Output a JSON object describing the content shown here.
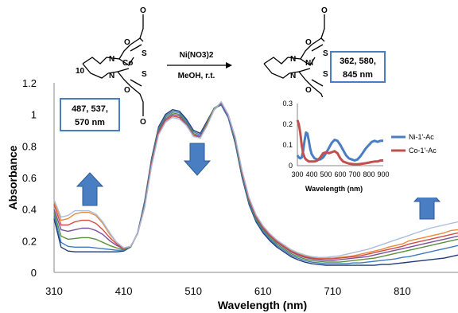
{
  "chart_data": [
    {
      "type": "line",
      "xlabel": "Wavelength (nm)",
      "ylabel": "Absorbance",
      "xlim": [
        310,
        890
      ],
      "ylim": [
        0,
        1.2
      ],
      "x_ticks": [
        "310",
        "410",
        "510",
        "610",
        "710",
        "810"
      ],
      "y_ticks": [
        "0",
        "0.2",
        "0.4",
        "0.6",
        "0.8",
        "1",
        "1.2"
      ],
      "grid": false,
      "colors": [
        "#1f3b73",
        "#3d7abf",
        "#5a8f3c",
        "#7b4f9e",
        "#e98a3a",
        "#d24a45",
        "#a9bde0"
      ],
      "x": [
        310,
        320,
        330,
        340,
        350,
        360,
        370,
        380,
        390,
        400,
        410,
        420,
        430,
        440,
        450,
        460,
        470,
        480,
        490,
        500,
        510,
        520,
        530,
        540,
        550,
        560,
        570,
        580,
        590,
        600,
        610,
        620,
        630,
        640,
        650,
        660,
        670,
        680,
        690,
        700,
        710,
        720,
        730,
        740,
        750,
        760,
        770,
        780,
        790,
        800,
        810,
        820,
        830,
        840,
        850,
        860,
        870,
        880,
        890
      ],
      "series": [
        {
          "values": [
            0.34,
            0.16,
            0.135,
            0.13,
            0.13,
            0.13,
            0.13,
            0.13,
            0.13,
            0.13,
            0.135,
            0.16,
            0.25,
            0.45,
            0.72,
            0.92,
            1.0,
            1.03,
            1.02,
            0.97,
            0.9,
            0.88,
            0.96,
            1.04,
            1.06,
            0.98,
            0.82,
            0.6,
            0.43,
            0.32,
            0.25,
            0.2,
            0.16,
            0.13,
            0.1,
            0.08,
            0.065,
            0.055,
            0.05,
            0.045,
            0.045,
            0.045,
            0.045,
            0.045,
            0.045,
            0.045,
            0.045,
            0.05,
            0.05,
            0.055,
            0.06,
            0.065,
            0.07,
            0.075,
            0.08,
            0.085,
            0.09,
            0.1,
            0.11
          ]
        },
        {
          "values": [
            0.36,
            0.19,
            0.165,
            0.16,
            0.16,
            0.16,
            0.155,
            0.15,
            0.145,
            0.14,
            0.14,
            0.16,
            0.25,
            0.44,
            0.71,
            0.91,
            0.99,
            1.02,
            1.01,
            0.96,
            0.89,
            0.87,
            0.95,
            1.04,
            1.06,
            0.98,
            0.83,
            0.61,
            0.44,
            0.33,
            0.26,
            0.21,
            0.17,
            0.14,
            0.11,
            0.09,
            0.075,
            0.065,
            0.06,
            0.055,
            0.055,
            0.055,
            0.055,
            0.06,
            0.06,
            0.065,
            0.07,
            0.075,
            0.08,
            0.085,
            0.095,
            0.1,
            0.11,
            0.12,
            0.13,
            0.14,
            0.15,
            0.16,
            0.17
          ]
        },
        {
          "values": [
            0.38,
            0.23,
            0.21,
            0.215,
            0.22,
            0.22,
            0.21,
            0.19,
            0.17,
            0.155,
            0.145,
            0.16,
            0.245,
            0.43,
            0.7,
            0.9,
            0.98,
            1.01,
            1.0,
            0.95,
            0.88,
            0.86,
            0.95,
            1.04,
            1.07,
            0.99,
            0.84,
            0.62,
            0.45,
            0.34,
            0.27,
            0.22,
            0.18,
            0.15,
            0.12,
            0.1,
            0.085,
            0.075,
            0.07,
            0.065,
            0.065,
            0.065,
            0.07,
            0.075,
            0.08,
            0.085,
            0.09,
            0.1,
            0.11,
            0.12,
            0.13,
            0.14,
            0.15,
            0.16,
            0.17,
            0.18,
            0.19,
            0.2,
            0.21
          ]
        },
        {
          "values": [
            0.4,
            0.27,
            0.26,
            0.27,
            0.28,
            0.28,
            0.265,
            0.24,
            0.2,
            0.17,
            0.15,
            0.165,
            0.245,
            0.42,
            0.69,
            0.89,
            0.97,
            1.0,
            0.99,
            0.94,
            0.87,
            0.86,
            0.94,
            1.03,
            1.07,
            0.99,
            0.85,
            0.63,
            0.46,
            0.35,
            0.28,
            0.23,
            0.19,
            0.16,
            0.13,
            0.11,
            0.095,
            0.085,
            0.08,
            0.075,
            0.075,
            0.08,
            0.085,
            0.09,
            0.095,
            0.1,
            0.11,
            0.12,
            0.13,
            0.14,
            0.15,
            0.16,
            0.17,
            0.18,
            0.19,
            0.2,
            0.21,
            0.22,
            0.23
          ]
        },
        {
          "values": [
            0.45,
            0.33,
            0.34,
            0.37,
            0.38,
            0.38,
            0.36,
            0.31,
            0.24,
            0.19,
            0.155,
            0.165,
            0.245,
            0.41,
            0.68,
            0.88,
            0.96,
            0.99,
            0.98,
            0.93,
            0.87,
            0.85,
            0.94,
            1.03,
            1.08,
            1.0,
            0.86,
            0.64,
            0.47,
            0.36,
            0.29,
            0.24,
            0.2,
            0.17,
            0.14,
            0.12,
            0.105,
            0.095,
            0.09,
            0.09,
            0.09,
            0.095,
            0.1,
            0.105,
            0.115,
            0.125,
            0.135,
            0.145,
            0.16,
            0.17,
            0.18,
            0.2,
            0.21,
            0.22,
            0.23,
            0.24,
            0.25,
            0.265,
            0.27
          ]
        },
        {
          "values": [
            0.43,
            0.3,
            0.3,
            0.32,
            0.33,
            0.33,
            0.31,
            0.27,
            0.22,
            0.18,
            0.15,
            0.165,
            0.245,
            0.415,
            0.68,
            0.88,
            0.96,
            0.99,
            0.98,
            0.93,
            0.87,
            0.85,
            0.94,
            1.03,
            1.075,
            1.0,
            0.855,
            0.635,
            0.465,
            0.355,
            0.285,
            0.235,
            0.195,
            0.165,
            0.135,
            0.115,
            0.1,
            0.09,
            0.085,
            0.085,
            0.085,
            0.09,
            0.095,
            0.1,
            0.105,
            0.115,
            0.125,
            0.135,
            0.145,
            0.155,
            0.165,
            0.18,
            0.19,
            0.2,
            0.21,
            0.22,
            0.23,
            0.24,
            0.25
          ]
        },
        {
          "values": [
            0.46,
            0.35,
            0.36,
            0.39,
            0.39,
            0.39,
            0.37,
            0.32,
            0.25,
            0.19,
            0.155,
            0.165,
            0.245,
            0.41,
            0.67,
            0.87,
            0.95,
            0.98,
            0.97,
            0.93,
            0.86,
            0.85,
            0.93,
            1.03,
            1.08,
            1.0,
            0.86,
            0.645,
            0.475,
            0.365,
            0.295,
            0.245,
            0.205,
            0.175,
            0.145,
            0.125,
            0.11,
            0.1,
            0.095,
            0.095,
            0.1,
            0.105,
            0.115,
            0.125,
            0.135,
            0.145,
            0.16,
            0.175,
            0.19,
            0.205,
            0.22,
            0.235,
            0.25,
            0.265,
            0.28,
            0.29,
            0.3,
            0.31,
            0.32
          ]
        }
      ]
    },
    {
      "type": "line",
      "xlabel": "Wavelength (nm)",
      "xlim": [
        300,
        900
      ],
      "ylim": [
        0,
        0.3
      ],
      "x_ticks": [
        "300",
        "400",
        "500",
        "600",
        "700",
        "800",
        "900"
      ],
      "y_ticks": [
        "0",
        "0.1",
        "0.2",
        "0.3"
      ],
      "legend_position": "right",
      "x": [
        300,
        310,
        320,
        330,
        340,
        350,
        360,
        370,
        380,
        390,
        400,
        420,
        440,
        460,
        480,
        500,
        520,
        540,
        560,
        580,
        600,
        620,
        640,
        660,
        680,
        700,
        720,
        740,
        760,
        780,
        800,
        820,
        840,
        860,
        880,
        900
      ],
      "series": [
        {
          "name": "Ni-1'-Ac",
          "color": "#4a7ec3",
          "values": [
            0.05,
            0.04,
            0.035,
            0.04,
            0.07,
            0.12,
            0.16,
            0.155,
            0.12,
            0.08,
            0.055,
            0.035,
            0.03,
            0.03,
            0.04,
            0.06,
            0.085,
            0.11,
            0.125,
            0.12,
            0.1,
            0.075,
            0.05,
            0.035,
            0.03,
            0.025,
            0.03,
            0.045,
            0.065,
            0.085,
            0.1,
            0.115,
            0.12,
            0.115,
            0.12,
            0.12
          ]
        },
        {
          "name": "Co-1'-Ac",
          "color": "#c0504d",
          "values": [
            0.22,
            0.2,
            0.16,
            0.1,
            0.06,
            0.04,
            0.03,
            0.025,
            0.02,
            0.02,
            0.02,
            0.02,
            0.025,
            0.04,
            0.06,
            0.065,
            0.06,
            0.065,
            0.07,
            0.06,
            0.035,
            0.02,
            0.015,
            0.01,
            0.008,
            0.007,
            0.007,
            0.008,
            0.01,
            0.012,
            0.015,
            0.018,
            0.02,
            0.02,
            0.025,
            0.025
          ]
        }
      ]
    }
  ],
  "annotations": {
    "box_left": [
      "487, 537,",
      "570 nm"
    ],
    "box_right": [
      "362, 580,",
      "845 nm"
    ],
    "compound_number": "10",
    "reagent": "Ni(NO3)2",
    "conditions": "MeOH, r.t.",
    "arrow_color": "#4a7ec3",
    "atoms": {
      "N": "N",
      "S": "S",
      "O": "O",
      "Co": "Co",
      "Ni": "Ni"
    }
  }
}
